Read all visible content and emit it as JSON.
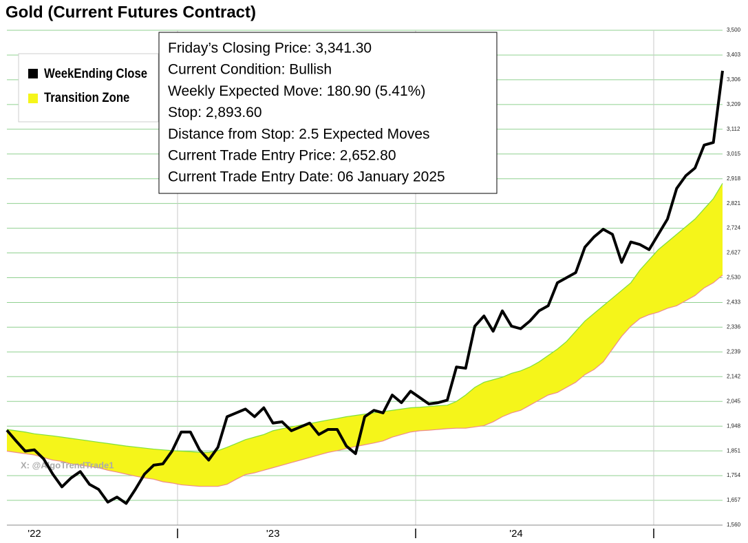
{
  "chart_data": {
    "type": "line",
    "title": "Gold (Current Futures Contract)",
    "info_lines": [
      "Friday’s Closing Price: 3,341.30",
      "Current Condition: Bullish",
      "Weekly Expected Move: 180.90 (5.41%)",
      "Stop: 2,893.60",
      "Distance from Stop: 2.5 Expected Moves",
      "Current Trade Entry Price: 2,652.80",
      "Current Trade Entry Date: 06 January 2025"
    ],
    "watermark": "X: @AlgoTrendTrade1",
    "series": [
      {
        "name": "WeekEnding Close",
        "color": "#000000",
        "values": [
          1932,
          1890,
          1850,
          1855,
          1820,
          1760,
          1710,
          1745,
          1770,
          1720,
          1700,
          1650,
          1670,
          1645,
          1700,
          1760,
          1795,
          1800,
          1850,
          1925,
          1925,
          1855,
          1815,
          1865,
          1985,
          2000,
          2015,
          1985,
          2020,
          1960,
          1965,
          1930,
          1945,
          1960,
          1915,
          1935,
          1935,
          1870,
          1840,
          1985,
          2010,
          2000,
          2070,
          2040,
          2085,
          2060,
          2035,
          2040,
          2050,
          2180,
          2175,
          2340,
          2380,
          2320,
          2400,
          2340,
          2330,
          2360,
          2400,
          2420,
          2510,
          2530,
          2550,
          2650,
          2690,
          2720,
          2700,
          2590,
          2670,
          2660,
          2640,
          2700,
          2760,
          2880,
          2930,
          2960,
          3050,
          3060,
          3341
        ]
      }
    ],
    "band": {
      "name": "Transition Zone",
      "color": "#f5f51a",
      "upper_color": "#7ee03a",
      "lower_color": "#ee8a8a",
      "upper": [
        1935,
        1930,
        1925,
        1918,
        1914,
        1910,
        1905,
        1900,
        1895,
        1890,
        1885,
        1880,
        1875,
        1870,
        1866,
        1862,
        1858,
        1855,
        1852,
        1850,
        1848,
        1845,
        1845,
        1852,
        1865,
        1880,
        1895,
        1905,
        1915,
        1930,
        1938,
        1945,
        1952,
        1958,
        1965,
        1972,
        1978,
        1985,
        1990,
        1995,
        2000,
        2005,
        2010,
        2015,
        2020,
        2022,
        2025,
        2028,
        2030,
        2045,
        2070,
        2100,
        2120,
        2130,
        2140,
        2155,
        2165,
        2180,
        2200,
        2225,
        2250,
        2280,
        2320,
        2360,
        2390,
        2420,
        2450,
        2480,
        2510,
        2560,
        2600,
        2640,
        2670,
        2700,
        2730,
        2760,
        2800,
        2840,
        2900
      ],
      "lower": [
        1850,
        1845,
        1840,
        1835,
        1825,
        1815,
        1810,
        1800,
        1795,
        1790,
        1785,
        1775,
        1768,
        1760,
        1752,
        1745,
        1740,
        1730,
        1725,
        1718,
        1715,
        1712,
        1712,
        1712,
        1720,
        1740,
        1758,
        1765,
        1775,
        1785,
        1795,
        1805,
        1815,
        1825,
        1835,
        1845,
        1852,
        1860,
        1868,
        1875,
        1882,
        1890,
        1905,
        1915,
        1925,
        1930,
        1932,
        1935,
        1938,
        1940,
        1940,
        1945,
        1950,
        1965,
        1985,
        2000,
        2010,
        2030,
        2050,
        2070,
        2080,
        2100,
        2120,
        2150,
        2170,
        2200,
        2250,
        2300,
        2340,
        2370,
        2385,
        2395,
        2410,
        2420,
        2440,
        2460,
        2490,
        2510,
        2540
      ]
    },
    "xlim": [
      0,
      78
    ],
    "xticks": [
      {
        "value": 3,
        "label": "'22"
      },
      {
        "value": 29,
        "label": "'23"
      },
      {
        "value": 55.5,
        "label": "'24"
      }
    ],
    "xgrid": [
      18.6,
      44.55,
      70.5
    ],
    "ylim": [
      1560,
      3500
    ],
    "yticks": [
      {
        "value": 1560,
        "label": "1,560"
      },
      {
        "value": 1657,
        "label": "1,657"
      },
      {
        "value": 1754,
        "label": "1,754"
      },
      {
        "value": 1851,
        "label": "1,851"
      },
      {
        "value": 1948,
        "label": "1,948"
      },
      {
        "value": 2045,
        "label": "2,045"
      },
      {
        "value": 2142,
        "label": "2,142"
      },
      {
        "value": 2239,
        "label": "2,239"
      },
      {
        "value": 2336,
        "label": "2,336"
      },
      {
        "value": 2433,
        "label": "2,433"
      },
      {
        "value": 2530,
        "label": "2,530"
      },
      {
        "value": 2627,
        "label": "2,627"
      },
      {
        "value": 2724,
        "label": "2,724"
      },
      {
        "value": 2821,
        "label": "2,821"
      },
      {
        "value": 2918,
        "label": "2,918"
      },
      {
        "value": 3015,
        "label": "3,015"
      },
      {
        "value": 3112,
        "label": "3,112"
      },
      {
        "value": 3209,
        "label": "3,209"
      },
      {
        "value": 3306,
        "label": "3,306"
      },
      {
        "value": 3403,
        "label": "3,403"
      },
      {
        "value": 3500,
        "label": "3,500"
      }
    ],
    "grid": true,
    "legend": "top-left"
  }
}
